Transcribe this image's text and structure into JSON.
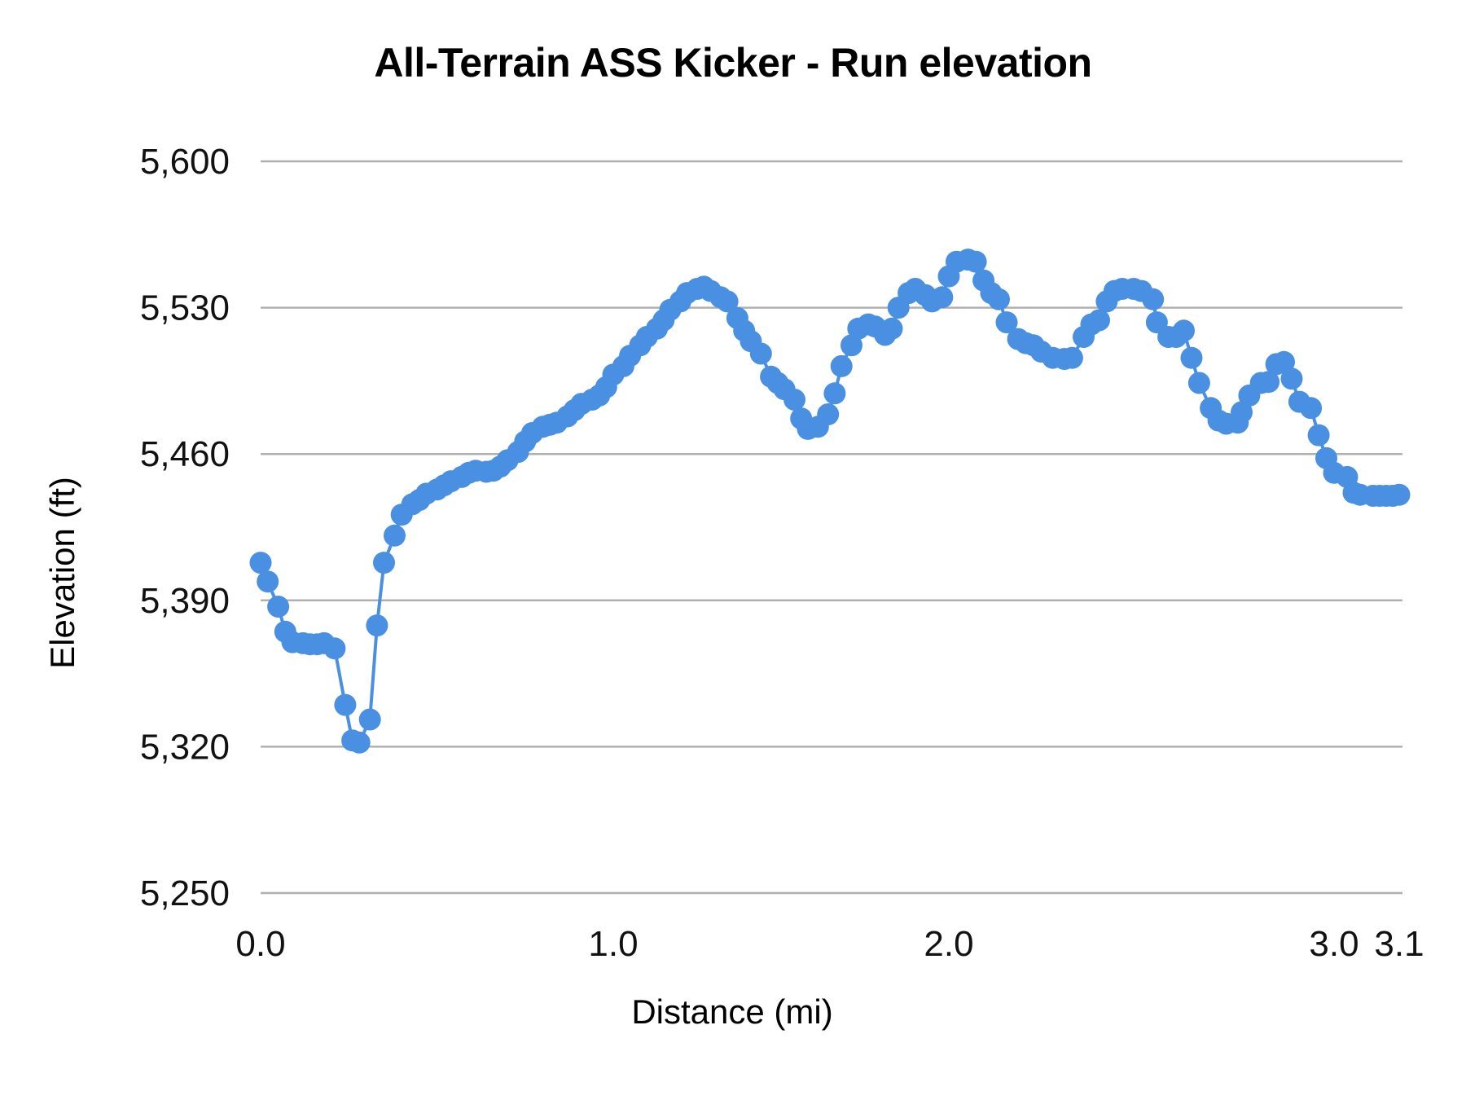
{
  "chart_data": {
    "type": "line",
    "title": "All-Terrain ASS Kicker - Run elevation",
    "xlabel": "Distance (mi)",
    "ylabel": "Elevation (ft)",
    "ylim": [
      5250,
      5600
    ],
    "y_ticks": [
      5250,
      5320,
      5390,
      5460,
      5530,
      5600
    ],
    "y_tick_labels": [
      "5,250",
      "5,320",
      "5,390",
      "5,460",
      "5,530",
      "5,600"
    ],
    "x_tick_labels": [
      "0.0",
      "1.0",
      "2.0",
      "3.0",
      "3.1"
    ],
    "x_ticks": [
      0.0,
      1.0,
      2.0,
      3.0,
      3.1
    ],
    "grid": {
      "horizontal": true,
      "vertical": false
    },
    "legend": "none",
    "markers": true,
    "series": [
      {
        "name": "Elevation",
        "color": "#4a90e2",
        "x": [
          0.0,
          0.02,
          0.05,
          0.07,
          0.09,
          0.12,
          0.14,
          0.16,
          0.18,
          0.21,
          0.24,
          0.26,
          0.28,
          0.31,
          0.33,
          0.35,
          0.38,
          0.4,
          0.43,
          0.45,
          0.47,
          0.5,
          0.52,
          0.54,
          0.57,
          0.59,
          0.61,
          0.64,
          0.66,
          0.68,
          0.7,
          0.73,
          0.75,
          0.77,
          0.8,
          0.82,
          0.84,
          0.87,
          0.89,
          0.91,
          0.94,
          0.96,
          0.98,
          1.0,
          1.03,
          1.05,
          1.08,
          1.1,
          1.13,
          1.15,
          1.17,
          1.2,
          1.22,
          1.25,
          1.27,
          1.29,
          1.32,
          1.34,
          1.37,
          1.39,
          1.41,
          1.44,
          1.47,
          1.49,
          1.51,
          1.54,
          1.56,
          1.58,
          1.61,
          1.64,
          1.66,
          1.68,
          1.71,
          1.73,
          1.76,
          1.78,
          1.81,
          1.83,
          1.85,
          1.88,
          1.9,
          1.93,
          1.95,
          1.98,
          2.0,
          2.02,
          2.05,
          2.07,
          2.09,
          2.11,
          2.13,
          2.15,
          2.18,
          2.2,
          2.22,
          2.24,
          2.27,
          2.3,
          2.32,
          2.35,
          2.37,
          2.39,
          2.41,
          2.43,
          2.45,
          2.48,
          2.5,
          2.53,
          2.54,
          2.57,
          2.59,
          2.61,
          2.63,
          2.65,
          2.68,
          2.7,
          2.72,
          2.75,
          2.76,
          2.78,
          2.81,
          2.83,
          2.85,
          2.87,
          2.89,
          2.91,
          2.94,
          2.96,
          2.98,
          3.0,
          3.02,
          3.03,
          3.04,
          3.06,
          3.07,
          3.08,
          3.09,
          3.1
        ],
        "y": [
          5408,
          5399,
          5387,
          5375,
          5370,
          5369.5,
          5369,
          5369,
          5369.5,
          5367,
          5340,
          5323,
          5322,
          5333,
          5378,
          5408,
          5421,
          5431,
          5436,
          5438,
          5441,
          5443,
          5445,
          5447,
          5449,
          5451,
          5452,
          5451.5,
          5452,
          5454,
          5457,
          5461,
          5466,
          5470,
          5473,
          5474,
          5475,
          5478,
          5481,
          5484,
          5486,
          5488,
          5492,
          5498,
          5502,
          5507,
          5512,
          5516,
          5520,
          5524,
          5529,
          5533,
          5537,
          5539,
          5540,
          5538,
          5535,
          5533,
          5525,
          5519,
          5514,
          5508,
          5497,
          5494,
          5491,
          5486,
          5477,
          5472,
          5473,
          5479,
          5489,
          5502,
          5512,
          5520,
          5522,
          5521,
          5517,
          5520,
          5530,
          5537,
          5539,
          5536,
          5533,
          5535,
          5545,
          5552,
          5553,
          5552,
          5543,
          5537,
          5534,
          5523,
          5515,
          5513,
          5512,
          5509,
          5506,
          5505.5,
          5506,
          5516,
          5522,
          5524,
          5533,
          5538,
          5539,
          5539,
          5538,
          5534,
          5523,
          5516,
          5516,
          5519,
          5506,
          5494,
          5482,
          5476,
          5474.5,
          5475,
          5480,
          5488,
          5494,
          5494.5,
          5503,
          5504,
          5496,
          5485,
          5482,
          5469,
          5458,
          5451,
          5449,
          5441.5,
          5440.5,
          5440,
          5440,
          5440,
          5440,
          5440.5
        ]
      }
    ]
  }
}
